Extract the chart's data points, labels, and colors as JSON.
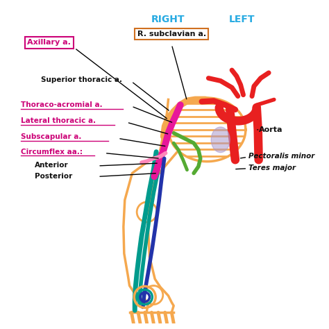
{
  "bg_color": "#ffffff",
  "title_right": "RIGHT",
  "title_left": "LEFT",
  "title_color": "#29abe2",
  "title_fontsize": 10,
  "colors": {
    "orange": "#f5a84e",
    "red": "#e82020",
    "magenta": "#e8189a",
    "teal": "#009b8d",
    "green": "#55aa33",
    "blue_dark": "#2233aa",
    "purple": "#aa99cc",
    "pink": "#ff88bb",
    "dark": "#111111",
    "label_magenta": "#cc0077"
  },
  "labels": {
    "axillary": "Axillary a.",
    "subclavian": "R. subclavian a.",
    "superior_thoracic": "Superior thoracic a.",
    "thoraco": "Thoraco-acromial a.",
    "lateral": "Lateral thoracic a.",
    "subscapular": "Subscapular a.",
    "circumflex": "Circumflex aa.:",
    "anterior": "Anterior",
    "posterior": "Posterior",
    "aorta": "Aorta",
    "pect_minor": "Pectoralis minor",
    "teres": "Teres major"
  }
}
